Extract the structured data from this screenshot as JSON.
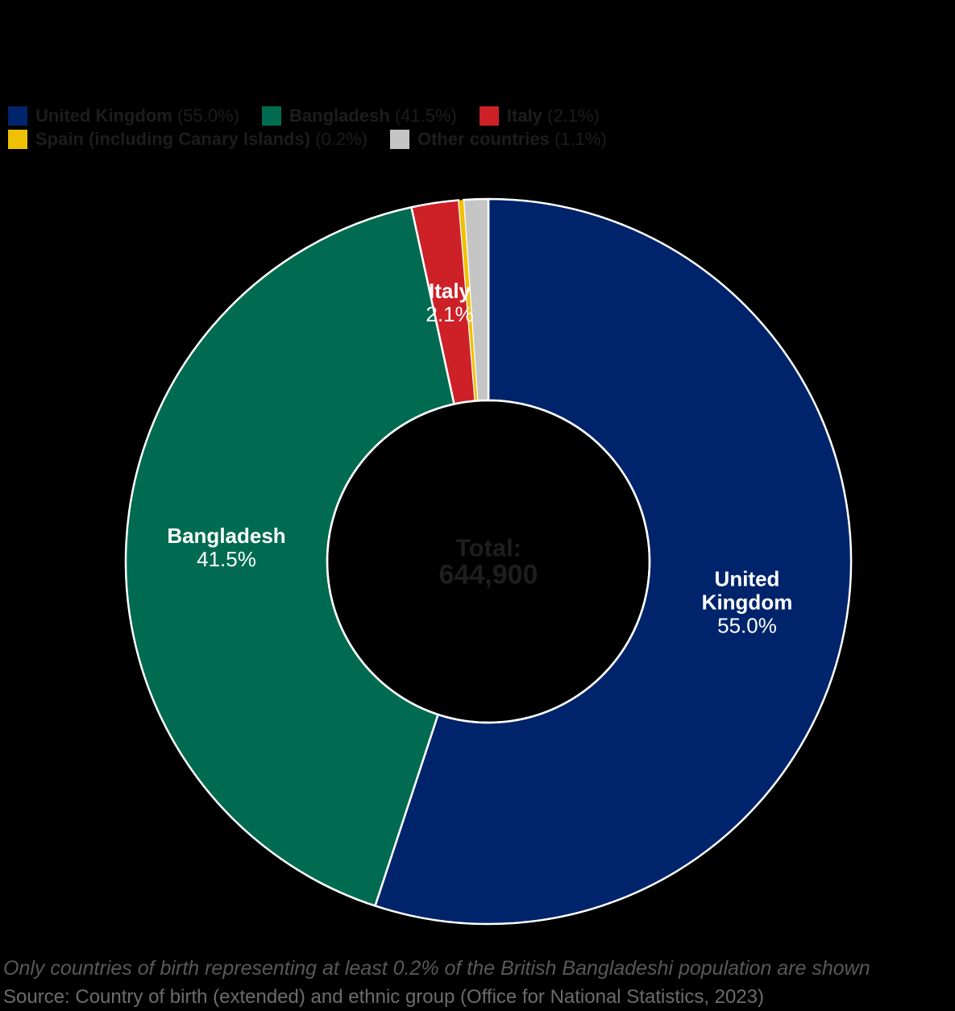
{
  "page": {
    "background": "#000000"
  },
  "chart_data": {
    "type": "pie",
    "donut": true,
    "title": "",
    "legend_position": "top",
    "start_angle_deg": 0,
    "direction": "clockwise",
    "categories": [
      "United Kingdom",
      "Bangladesh",
      "Italy",
      "Spain (including Canary Islands)",
      "Other countries"
    ],
    "values": [
      55.0,
      41.5,
      2.1,
      0.2,
      1.1
    ],
    "slices": [
      {
        "label": "United Kingdom",
        "value": 55.0,
        "pct_label": "55.0%",
        "color": "#00246B",
        "show_label": true,
        "label_display": "United\nKingdom"
      },
      {
        "label": "Bangladesh",
        "value": 41.5,
        "pct_label": "41.5%",
        "color": "#006B51",
        "show_label": true,
        "label_display": "Bangladesh"
      },
      {
        "label": "Italy",
        "value": 2.1,
        "pct_label": "2.1%",
        "color": "#CD2027",
        "show_label": true,
        "label_display": "Italy"
      },
      {
        "label": "Spain (including Canary Islands)",
        "value": 0.2,
        "pct_label": "0.2%",
        "color": "#EFC104",
        "show_label": false,
        "label_display": "Spain (including Canary Islands)"
      },
      {
        "label": "Other countries",
        "value": 1.1,
        "pct_label": "1.1%",
        "color": "#C5C5C5",
        "show_label": false,
        "label_display": "Other countries"
      }
    ],
    "total_label": "Total:",
    "total_value": "644,900",
    "slice_border_color": "#FFFFFF"
  },
  "footer": {
    "note": "Only countries of birth representing at least 0.2% of the British Bangladeshi population are shown",
    "source": "Source: Country of birth (extended) and ethnic group (Office for National Statistics, 2023)"
  }
}
